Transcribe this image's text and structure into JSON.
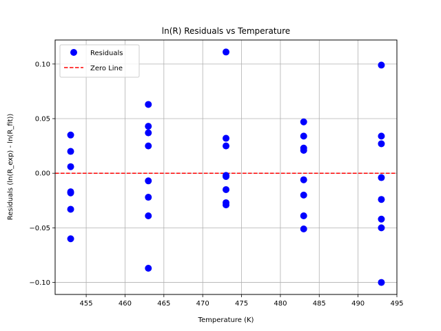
{
  "chart_data": {
    "type": "scatter",
    "title": "ln(R) Residuals vs Temperature",
    "xlabel": "Temperature (K)",
    "ylabel": "Residuals (ln(R_exp) - ln(R_fit))",
    "xlim": [
      451,
      495
    ],
    "ylim": [
      -0.111,
      0.122
    ],
    "xticks": [
      455,
      460,
      465,
      470,
      475,
      480,
      485,
      490,
      495
    ],
    "yticks": [
      -0.1,
      -0.05,
      0.0,
      0.05,
      0.1
    ],
    "ytick_labels": [
      "−0.10",
      "−0.05",
      "0.00",
      "0.05",
      "0.10"
    ],
    "grid": true,
    "legend_position": "top-left",
    "series": [
      {
        "name": "Residuals",
        "color": "#0000ff",
        "marker": "circle",
        "points": [
          {
            "x": 453,
            "y": 0.035
          },
          {
            "x": 453,
            "y": 0.02
          },
          {
            "x": 453,
            "y": 0.006
          },
          {
            "x": 453,
            "y": -0.017
          },
          {
            "x": 453,
            "y": -0.018
          },
          {
            "x": 453,
            "y": -0.033
          },
          {
            "x": 453,
            "y": -0.06
          },
          {
            "x": 463,
            "y": 0.063
          },
          {
            "x": 463,
            "y": 0.043
          },
          {
            "x": 463,
            "y": 0.037
          },
          {
            "x": 463,
            "y": 0.025
          },
          {
            "x": 463,
            "y": -0.007
          },
          {
            "x": 463,
            "y": -0.022
          },
          {
            "x": 463,
            "y": -0.039
          },
          {
            "x": 463,
            "y": -0.087
          },
          {
            "x": 473,
            "y": 0.111
          },
          {
            "x": 473,
            "y": 0.032
          },
          {
            "x": 473,
            "y": 0.025
          },
          {
            "x": 473,
            "y": -0.002
          },
          {
            "x": 473,
            "y": -0.003
          },
          {
            "x": 473,
            "y": -0.015
          },
          {
            "x": 473,
            "y": -0.027
          },
          {
            "x": 473,
            "y": -0.029
          },
          {
            "x": 483,
            "y": 0.047
          },
          {
            "x": 483,
            "y": 0.034
          },
          {
            "x": 483,
            "y": 0.023
          },
          {
            "x": 483,
            "y": 0.021
          },
          {
            "x": 483,
            "y": -0.006
          },
          {
            "x": 483,
            "y": -0.02
          },
          {
            "x": 483,
            "y": -0.039
          },
          {
            "x": 483,
            "y": -0.051
          },
          {
            "x": 493,
            "y": 0.099
          },
          {
            "x": 493,
            "y": 0.034
          },
          {
            "x": 493,
            "y": 0.027
          },
          {
            "x": 493,
            "y": -0.004
          },
          {
            "x": 493,
            "y": -0.024
          },
          {
            "x": 493,
            "y": -0.042
          },
          {
            "x": 493,
            "y": -0.05
          },
          {
            "x": 493,
            "y": -0.1
          }
        ]
      }
    ],
    "reference_lines": [
      {
        "name": "Zero Line",
        "y": 0.0,
        "color": "#ff0000",
        "style": "dashed"
      }
    ]
  }
}
